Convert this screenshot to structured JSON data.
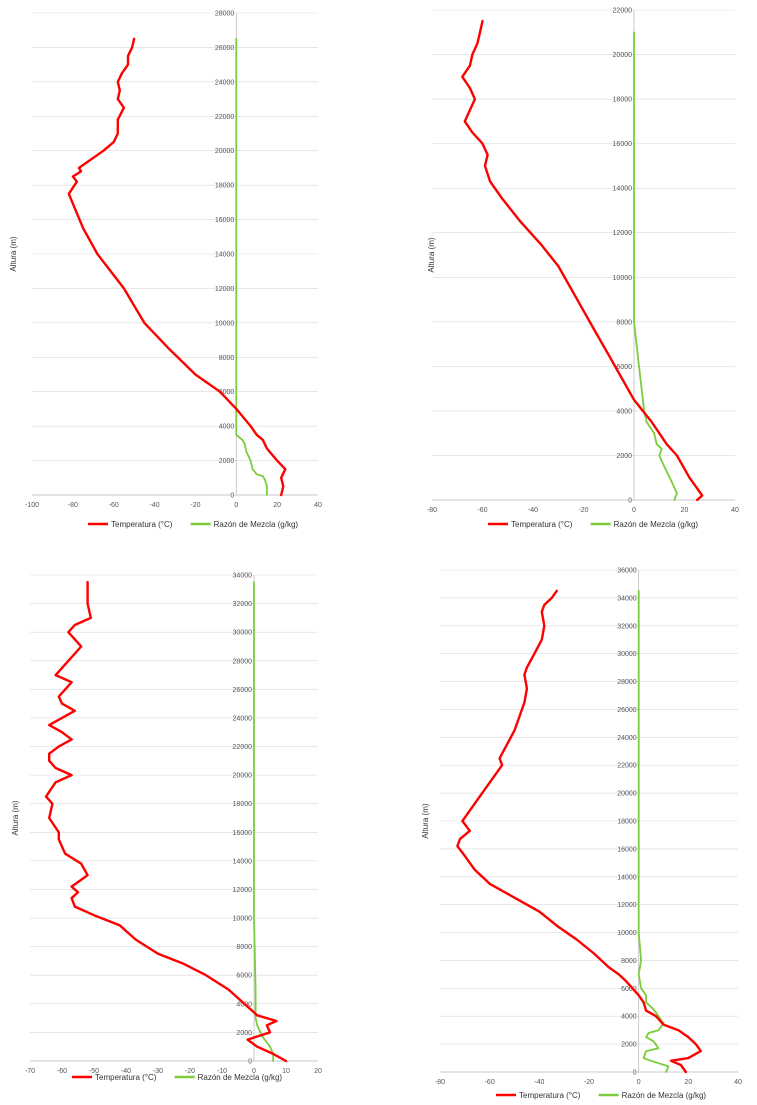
{
  "colors": {
    "temperature": "#ff0000",
    "mixing_ratio": "#7ccc3c",
    "grid": "#d9d9d9",
    "axis": "#bfbfbf"
  },
  "chart_data": [
    {
      "type": "line",
      "ylabel": "Altura (m)",
      "xlim": [
        -100,
        40
      ],
      "ylim": [
        0,
        28000
      ],
      "xticks": [
        -100,
        -80,
        -60,
        -40,
        -20,
        0,
        20,
        40
      ],
      "yticks": [
        0,
        2000,
        4000,
        6000,
        8000,
        10000,
        12000,
        14000,
        16000,
        18000,
        20000,
        22000,
        24000,
        26000,
        28000
      ],
      "grid": true,
      "legend": "bottom",
      "series": [
        {
          "name": "Temperatura (°C)",
          "color": "#ff0000",
          "points": [
            [
              22,
              0
            ],
            [
              23,
              500
            ],
            [
              22,
              1000
            ],
            [
              24,
              1500
            ],
            [
              20,
              2000
            ],
            [
              15,
              2700
            ],
            [
              13,
              3200
            ],
            [
              10,
              3500
            ],
            [
              7,
              4000
            ],
            [
              0,
              5000
            ],
            [
              -8,
              6000
            ],
            [
              -20,
              7000
            ],
            [
              -33,
              8500
            ],
            [
              -45,
              10000
            ],
            [
              -50,
              11000
            ],
            [
              -55,
              12000
            ],
            [
              -68,
              14000
            ],
            [
              -75,
              15500
            ],
            [
              -82,
              17500
            ],
            [
              -78,
              18200
            ],
            [
              -80,
              18500
            ],
            [
              -76,
              18800
            ],
            [
              -77,
              19000
            ],
            [
              -65,
              20000
            ],
            [
              -60,
              20500
            ],
            [
              -58,
              21000
            ],
            [
              -58,
              21800
            ],
            [
              -55,
              22500
            ],
            [
              -58,
              23000
            ],
            [
              -57,
              23500
            ],
            [
              -58,
              24000
            ],
            [
              -56,
              24500
            ],
            [
              -53,
              25000
            ],
            [
              -53,
              25500
            ],
            [
              -51,
              26000
            ],
            [
              -50,
              26500
            ]
          ]
        },
        {
          "name": "Razón de Mezcla (g/kg)",
          "color": "#7ccc3c",
          "points": [
            [
              15,
              0
            ],
            [
              15,
              500
            ],
            [
              14,
              900
            ],
            [
              13,
              1100
            ],
            [
              10,
              1200
            ],
            [
              8,
              1500
            ],
            [
              7,
              2000
            ],
            [
              5,
              2500
            ],
            [
              4,
              3000
            ],
            [
              3,
              3200
            ],
            [
              0,
              3500
            ],
            [
              0,
              5000
            ],
            [
              0,
              10000
            ],
            [
              0,
              20000
            ],
            [
              0,
              26500
            ]
          ]
        }
      ]
    },
    {
      "type": "line",
      "ylabel": "Altura (m)",
      "xlim": [
        -80,
        40
      ],
      "ylim": [
        0,
        22000
      ],
      "xticks": [
        -80,
        -60,
        -40,
        -20,
        0,
        20,
        40
      ],
      "yticks": [
        0,
        2000,
        4000,
        6000,
        8000,
        10000,
        12000,
        14000,
        16000,
        18000,
        20000,
        22000
      ],
      "grid": true,
      "legend": "bottom",
      "series": [
        {
          "name": "Temperatura (°C)",
          "color": "#ff0000",
          "points": [
            [
              25,
              0
            ],
            [
              27,
              200
            ],
            [
              22,
              1000
            ],
            [
              17,
              2000
            ],
            [
              13,
              2500
            ],
            [
              7,
              3500
            ],
            [
              0,
              4500
            ],
            [
              -5,
              5500
            ],
            [
              -10,
              6500
            ],
            [
              -15,
              7500
            ],
            [
              -20,
              8500
            ],
            [
              -25,
              9500
            ],
            [
              -30,
              10500
            ],
            [
              -37,
              11500
            ],
            [
              -45,
              12500
            ],
            [
              -52,
              13500
            ],
            [
              -57,
              14300
            ],
            [
              -59,
              15000
            ],
            [
              -58,
              15500
            ],
            [
              -60,
              16000
            ],
            [
              -64,
              16500
            ],
            [
              -67,
              17000
            ],
            [
              -63,
              18000
            ],
            [
              -65,
              18500
            ],
            [
              -68,
              19000
            ],
            [
              -65,
              19500
            ],
            [
              -64,
              20000
            ],
            [
              -62,
              20500
            ],
            [
              -61,
              21000
            ],
            [
              -60,
              21500
            ]
          ]
        },
        {
          "name": "Razón de Mezcla (g/kg)",
          "color": "#7ccc3c",
          "points": [
            [
              16,
              0
            ],
            [
              17,
              300
            ],
            [
              15,
              800
            ],
            [
              12,
              1500
            ],
            [
              10,
              2000
            ],
            [
              11,
              2300
            ],
            [
              9,
              2500
            ],
            [
              8,
              3000
            ],
            [
              5,
              3500
            ],
            [
              4,
              4000
            ],
            [
              3,
              5000
            ],
            [
              2,
              6000
            ],
            [
              1,
              7000
            ],
            [
              0,
              8000
            ],
            [
              0,
              10000
            ],
            [
              0,
              15000
            ],
            [
              0,
              21000
            ]
          ]
        }
      ]
    },
    {
      "type": "line",
      "ylabel": "Altura (m)",
      "xlim": [
        -70,
        20
      ],
      "ylim": [
        0,
        34000
      ],
      "xticks": [
        -70,
        -60,
        -50,
        -40,
        -30,
        -20,
        -10,
        0,
        10,
        20
      ],
      "yticks": [
        0,
        2000,
        4000,
        6000,
        8000,
        10000,
        12000,
        14000,
        16000,
        18000,
        20000,
        22000,
        24000,
        26000,
        28000,
        30000,
        32000,
        34000
      ],
      "grid": true,
      "legend": "bottom",
      "series": [
        {
          "name": "Temperatura (°C)",
          "color": "#ff0000",
          "points": [
            [
              10,
              0
            ],
            [
              6,
              500
            ],
            [
              1,
              1000
            ],
            [
              -2,
              1500
            ],
            [
              5,
              2000
            ],
            [
              4,
              2500
            ],
            [
              7,
              2800
            ],
            [
              1,
              3200
            ],
            [
              -3,
              4000
            ],
            [
              -8,
              5000
            ],
            [
              -15,
              6000
            ],
            [
              -22,
              6800
            ],
            [
              -30,
              7500
            ],
            [
              -37,
              8500
            ],
            [
              -42,
              9500
            ],
            [
              -50,
              10200
            ],
            [
              -56,
              10800
            ],
            [
              -57,
              11400
            ],
            [
              -55,
              11800
            ],
            [
              -57,
              12200
            ],
            [
              -52,
              13000
            ],
            [
              -54,
              13800
            ],
            [
              -59,
              14500
            ],
            [
              -60,
              15000
            ],
            [
              -61,
              15500
            ],
            [
              -61,
              16000
            ],
            [
              -64,
              17000
            ],
            [
              -63,
              18000
            ],
            [
              -65,
              18500
            ],
            [
              -62,
              19500
            ],
            [
              -57,
              20000
            ],
            [
              -62,
              20500
            ],
            [
              -64,
              21000
            ],
            [
              -64,
              21500
            ],
            [
              -61,
              22000
            ],
            [
              -57,
              22500
            ],
            [
              -60,
              23000
            ],
            [
              -64,
              23500
            ],
            [
              -60,
              24000
            ],
            [
              -56,
              24500
            ],
            [
              -60,
              25000
            ],
            [
              -61,
              25500
            ],
            [
              -59,
              26000
            ],
            [
              -57,
              26500
            ],
            [
              -62,
              27000
            ],
            [
              -60,
              27500
            ],
            [
              -58,
              28000
            ],
            [
              -54,
              29000
            ],
            [
              -56,
              29500
            ],
            [
              -58,
              30000
            ],
            [
              -56,
              30500
            ],
            [
              -51,
              31000
            ],
            [
              -52,
              32000
            ],
            [
              -52,
              33000
            ],
            [
              -52,
              33500
            ]
          ]
        },
        {
          "name": "Razón de Mezcla (g/kg)",
          "color": "#7ccc3c",
          "points": [
            [
              6,
              0
            ],
            [
              6,
              500
            ],
            [
              5,
              1000
            ],
            [
              4,
              1300
            ],
            [
              3,
              1600
            ],
            [
              2,
              2000
            ],
            [
              1,
              2500
            ],
            [
              0.5,
              3000
            ],
            [
              0.5,
              5000
            ],
            [
              0,
              10000
            ],
            [
              0,
              20000
            ],
            [
              0,
              33500
            ]
          ]
        }
      ]
    },
    {
      "type": "line",
      "ylabel": "Altura (m)",
      "xlim": [
        -80,
        40
      ],
      "ylim": [
        0,
        36000
      ],
      "xticks": [
        -80,
        -60,
        -40,
        -20,
        0,
        20,
        40
      ],
      "yticks": [
        0,
        2000,
        4000,
        6000,
        8000,
        10000,
        12000,
        14000,
        16000,
        18000,
        20000,
        22000,
        24000,
        26000,
        28000,
        30000,
        32000,
        34000,
        36000
      ],
      "grid": true,
      "legend": "bottom",
      "series": [
        {
          "name": "Temperatura (°C)",
          "color": "#ff0000",
          "points": [
            [
              19,
              0
            ],
            [
              17,
              500
            ],
            [
              13,
              800
            ],
            [
              20,
              1000
            ],
            [
              25,
              1500
            ],
            [
              23,
              2000
            ],
            [
              20,
              2500
            ],
            [
              16,
              3000
            ],
            [
              10,
              3400
            ],
            [
              7,
              4000
            ],
            [
              3,
              4400
            ],
            [
              2,
              5000
            ],
            [
              0,
              5500
            ],
            [
              -5,
              6500
            ],
            [
              -8,
              7000
            ],
            [
              -12,
              7500
            ],
            [
              -18,
              8500
            ],
            [
              -25,
              9500
            ],
            [
              -33,
              10500
            ],
            [
              -40,
              11500
            ],
            [
              -50,
              12500
            ],
            [
              -60,
              13500
            ],
            [
              -66,
              14500
            ],
            [
              -70,
              15500
            ],
            [
              -73,
              16200
            ],
            [
              -72,
              16700
            ],
            [
              -68,
              17300
            ],
            [
              -71,
              18000
            ],
            [
              -67,
              19000
            ],
            [
              -63,
              20000
            ],
            [
              -57,
              21500
            ],
            [
              -55,
              22000
            ],
            [
              -56,
              22500
            ],
            [
              -53,
              23500
            ],
            [
              -50,
              24500
            ],
            [
              -48,
              25500
            ],
            [
              -46,
              26500
            ],
            [
              -45,
              27500
            ],
            [
              -46,
              28500
            ],
            [
              -45,
              29000
            ],
            [
              -42,
              30000
            ],
            [
              -39,
              31000
            ],
            [
              -38,
              32000
            ],
            [
              -39,
              33000
            ],
            [
              -38,
              33500
            ],
            [
              -35,
              34000
            ],
            [
              -33,
              34500
            ]
          ]
        },
        {
          "name": "Razón de Mezcla (g/kg)",
          "color": "#7ccc3c",
          "points": [
            [
              11,
              0
            ],
            [
              12,
              400
            ],
            [
              5,
              800
            ],
            [
              2,
              1000
            ],
            [
              3,
              1500
            ],
            [
              8,
              1700
            ],
            [
              6,
              2200
            ],
            [
              3,
              2500
            ],
            [
              4,
              2800
            ],
            [
              8,
              3000
            ],
            [
              10,
              3500
            ],
            [
              8,
              4000
            ],
            [
              6,
              4500
            ],
            [
              3,
              5000
            ],
            [
              3,
              5500
            ],
            [
              1,
              6000
            ],
            [
              0,
              7000
            ],
            [
              1,
              8000
            ],
            [
              0,
              10000
            ],
            [
              0,
              20000
            ],
            [
              0,
              34500
            ]
          ]
        }
      ]
    }
  ]
}
